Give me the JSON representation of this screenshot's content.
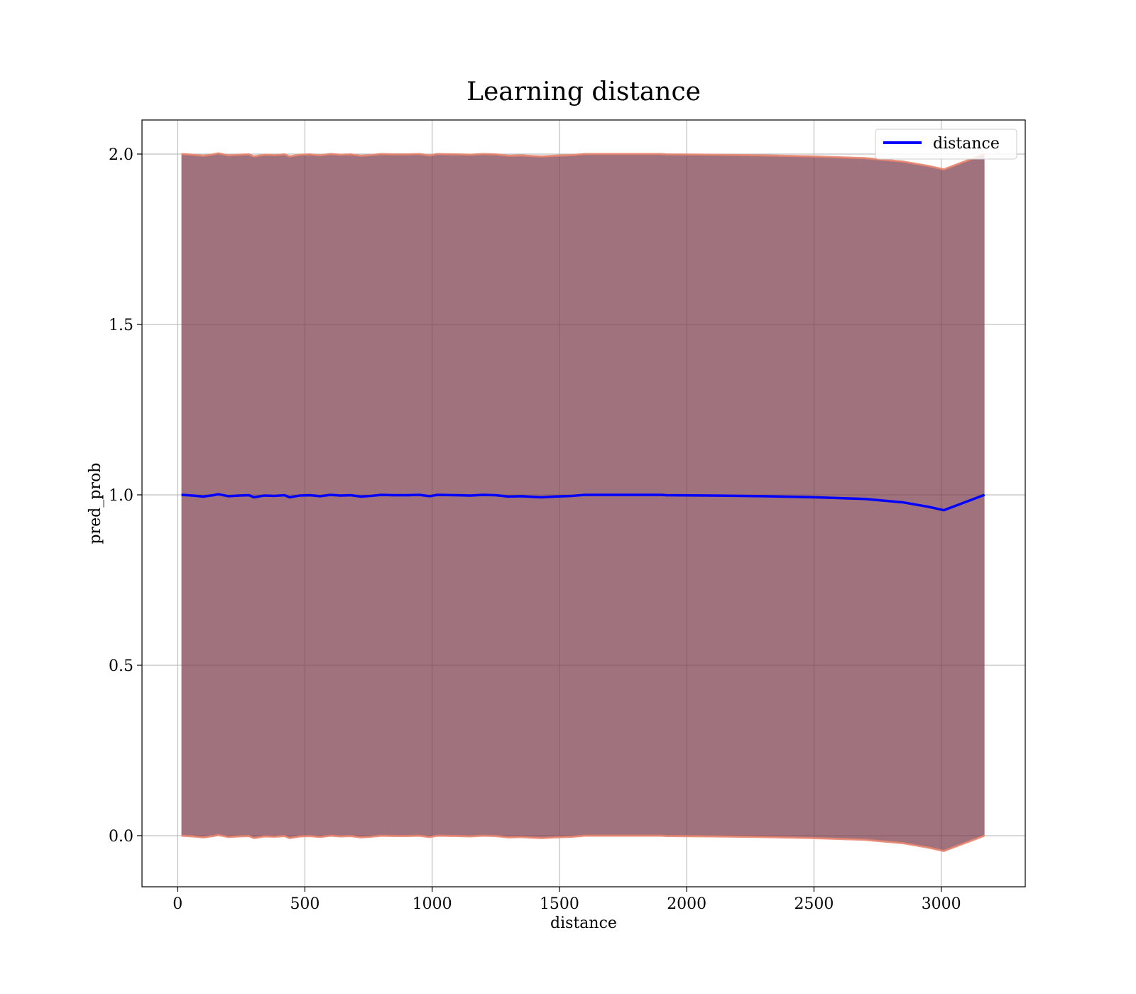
{
  "chart_data": {
    "type": "line",
    "title": "Learning distance",
    "xlabel": "distance",
    "ylabel": "pred_prob",
    "xlim": [
      -140,
      3330
    ],
    "ylim": [
      -0.15,
      2.1
    ],
    "xticks": [
      0,
      500,
      1000,
      1500,
      2000,
      2500,
      3000
    ],
    "xtick_labels": [
      "0",
      "500",
      "1000",
      "1500",
      "2000",
      "2500",
      "3000"
    ],
    "yticks": [
      0.0,
      0.5,
      1.0,
      1.5,
      2.0
    ],
    "ytick_labels": [
      "0.0",
      "0.5",
      "1.0",
      "1.5",
      "2.0"
    ],
    "grid": true,
    "legend": {
      "position": "top-right",
      "entries": [
        "distance"
      ]
    },
    "series": [
      {
        "name": "distance",
        "color": "#0000ff",
        "x": [
          15,
          60,
          100,
          140,
          160,
          200,
          240,
          280,
          300,
          340,
          380,
          420,
          440,
          480,
          520,
          560,
          600,
          640,
          680,
          720,
          760,
          800,
          850,
          900,
          950,
          990,
          1020,
          1100,
          1150,
          1200,
          1250,
          1300,
          1350,
          1400,
          1430,
          1480,
          1550,
          1600,
          1700,
          1800,
          1900,
          1920,
          2100,
          2300,
          2500,
          2700,
          2850,
          2950,
          3010,
          3170
        ],
        "y": [
          1.0,
          0.998,
          0.995,
          0.999,
          1.002,
          0.996,
          0.998,
          0.999,
          0.993,
          0.998,
          0.997,
          0.999,
          0.993,
          0.998,
          0.999,
          0.996,
          1.0,
          0.998,
          0.999,
          0.995,
          0.997,
          1.0,
          0.999,
          0.999,
          1.0,
          0.996,
          1.0,
          0.999,
          0.998,
          1.0,
          0.999,
          0.995,
          0.996,
          0.994,
          0.993,
          0.995,
          0.997,
          1.0,
          1.0,
          1.0,
          1.0,
          0.999,
          0.998,
          0.996,
          0.993,
          0.988,
          0.978,
          0.965,
          0.955,
          1.0
        ]
      }
    ],
    "band": {
      "fill_color": "#7a3b4c",
      "edge_color": "#e8836b",
      "upper": [
        2.0,
        1.998,
        1.995,
        1.999,
        2.002,
        1.996,
        1.998,
        1.999,
        1.993,
        1.998,
        1.997,
        1.999,
        1.993,
        1.998,
        1.999,
        1.996,
        2.0,
        1.998,
        1.999,
        1.995,
        1.997,
        2.0,
        1.999,
        1.999,
        2.0,
        1.996,
        2.0,
        1.999,
        1.998,
        2.0,
        1.999,
        1.995,
        1.996,
        1.994,
        1.993,
        1.995,
        1.997,
        2.0,
        2.0,
        2.0,
        2.0,
        1.999,
        1.998,
        1.996,
        1.993,
        1.988,
        1.978,
        1.965,
        1.955,
        2.0
      ],
      "lower": [
        0.0,
        -0.002,
        -0.005,
        -0.001,
        0.002,
        -0.004,
        -0.002,
        -0.001,
        -0.007,
        -0.002,
        -0.003,
        -0.001,
        -0.007,
        -0.002,
        -0.001,
        -0.004,
        0.0,
        -0.002,
        -0.001,
        -0.005,
        -0.003,
        0.0,
        -0.001,
        -0.001,
        0.0,
        -0.004,
        0.0,
        -0.001,
        -0.002,
        0.0,
        -0.001,
        -0.005,
        -0.004,
        -0.006,
        -0.007,
        -0.005,
        -0.003,
        0.0,
        0.0,
        0.0,
        0.0,
        -0.001,
        -0.002,
        -0.004,
        -0.007,
        -0.012,
        -0.022,
        -0.035,
        -0.045,
        0.0
      ]
    }
  }
}
